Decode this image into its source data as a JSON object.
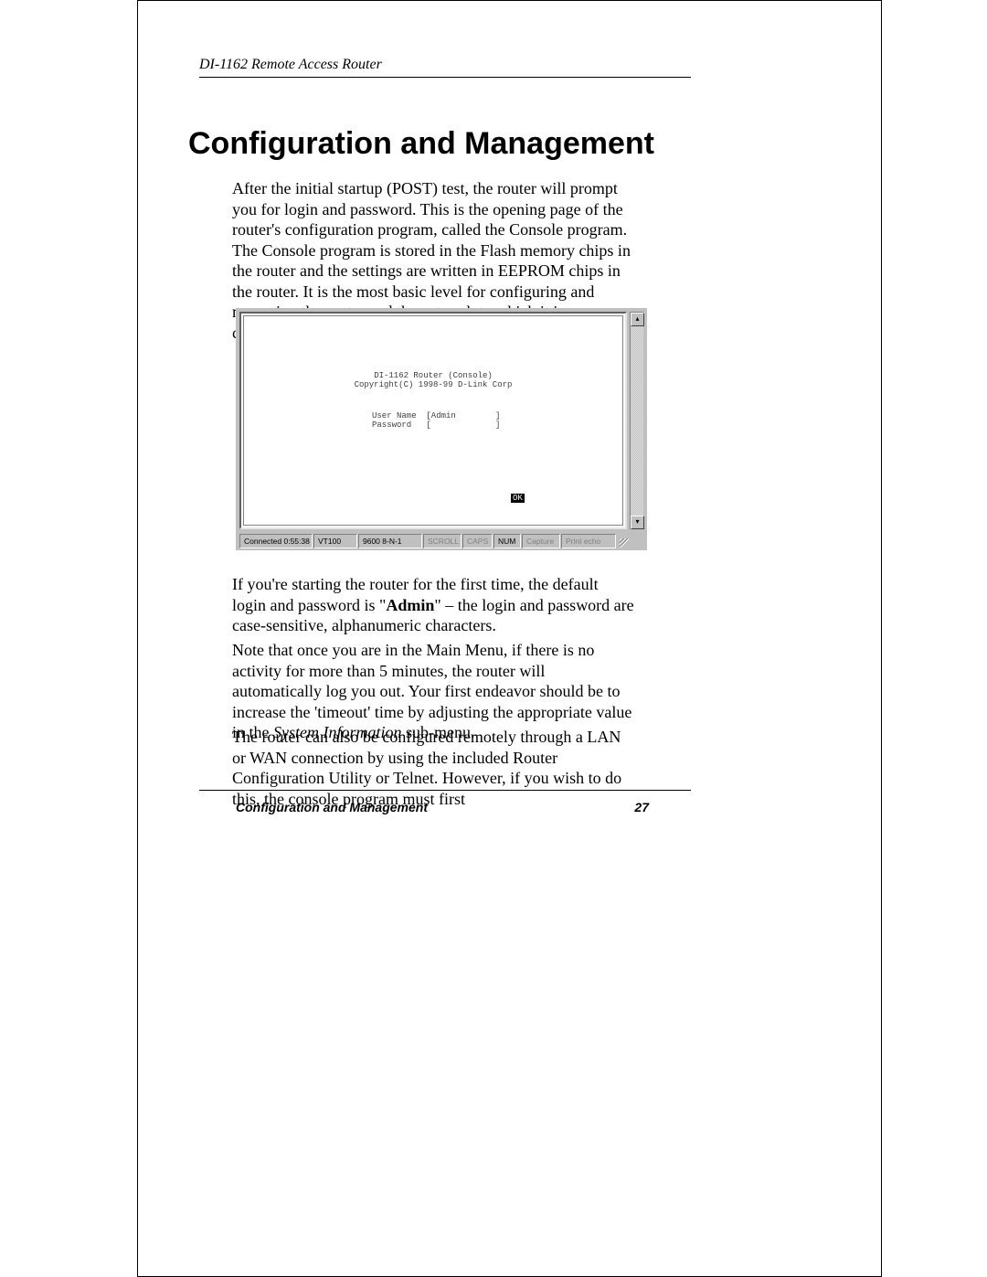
{
  "header": {
    "product": "DI-1162 Remote Access Router"
  },
  "title": "Configuration and Management",
  "paragraphs": {
    "p1": "After the initial startup (POST) test, the router will prompt you for login and password. This is the opening page of the router's configuration program, called the Console program. The Console program is stored in the Flash memory chips in the router and the settings are written in EEPROM chips in the router. It is the most basic level for configuring and managing the router and the network to which it is connected.",
    "p2a": "If you're starting the router for the first time, the default login and password is \"",
    "p2_bold": "Admin",
    "p2b": "\" – the login and password are case-sensitive, alphanumeric characters.",
    "p3a": "Note that once you are in the Main Menu, if there is no activity for more than 5 minutes, the router will automatically log you out.   Your first endeavor should be to increase the 'timeout' time by adjusting the appropriate value in the ",
    "p3_italic": "System Information",
    "p3b": " sub-menu.",
    "p4": "The router can also be configured remotely through a LAN or WAN connection by using the included Router Configuration Utility or Telnet. However, if you wish to do this, the console program must first"
  },
  "terminal": {
    "line1": "DI-1162 Router (Console)",
    "line2": "Copyright(C) 1998-99 D-Link Corp",
    "login_block": "User Name  [Admin        ]\nPassword   [             ]",
    "ok": "OK",
    "status": {
      "connected": "Connected 0:55:38",
      "vt": "VT100",
      "baud": "9600 8-N-1",
      "scroll": "SCROLL",
      "caps": "CAPS",
      "num": "NUM",
      "capture": "Capture",
      "echo": "Print echo"
    },
    "widths": {
      "connected": 80,
      "vt": 48,
      "baud": 70,
      "scroll": 42,
      "caps": 33,
      "num": 30,
      "capture": 42,
      "echo": 60
    },
    "colors": {
      "frame_bg": "#c0c0c0",
      "inner_bg": "#ffffff",
      "text": "#404040",
      "dim": "#808080"
    }
  },
  "footer": {
    "section": "Configuration and Management",
    "page": "27"
  }
}
